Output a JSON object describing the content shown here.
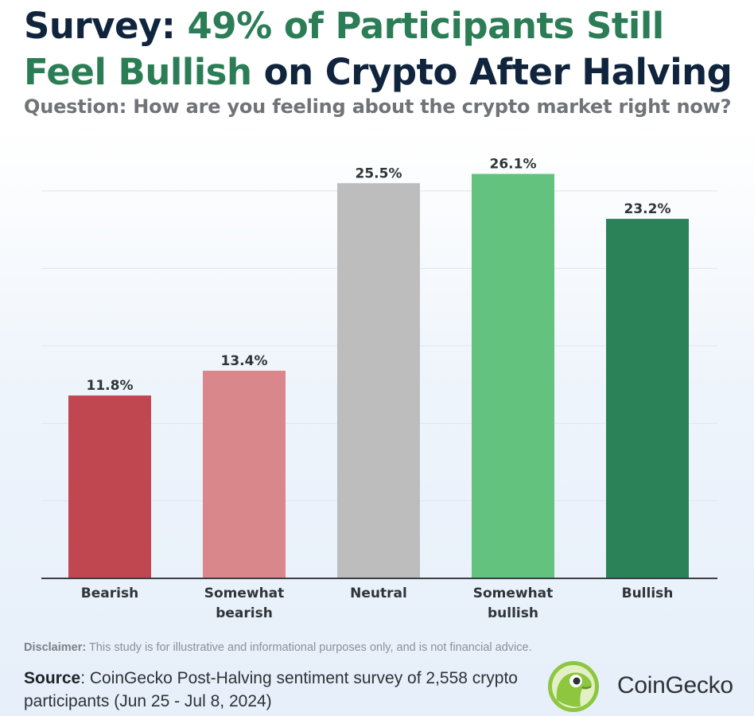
{
  "title": {
    "part1": "Survey: ",
    "part2": "49% of Participants Still Feel Bullish",
    "part3": " on Crypto After Halving"
  },
  "subtitle": "Question: How are you feeling about the crypto market right now?",
  "colors": {
    "title_dark": "#10253d",
    "title_green": "#2b7d56",
    "bearish": "#c0474f",
    "somewhat_bearish": "#d9878b",
    "neutral": "#bdbdbd",
    "somewhat_bullish": "#62c27e",
    "bullish": "#2b8259"
  },
  "chart_data": {
    "type": "bar",
    "categories": [
      "Bearish",
      "Somewhat bearish",
      "Neutral",
      "Somewhat bullish",
      "Bullish"
    ],
    "category_lines": [
      [
        "Bearish"
      ],
      [
        "Somewhat",
        "bearish"
      ],
      [
        "Neutral"
      ],
      [
        "Somewhat",
        "bullish"
      ],
      [
        "Bullish"
      ]
    ],
    "values": [
      11.8,
      13.4,
      25.5,
      26.1,
      23.2
    ],
    "data_labels": [
      "11.8%",
      "13.4%",
      "25.5%",
      "26.1%",
      "23.2%"
    ],
    "bar_colors": [
      "#c0474f",
      "#d9878b",
      "#bdbdbd",
      "#62c27e",
      "#2b8259"
    ],
    "ylim": [
      0,
      25
    ],
    "grid": true,
    "xlabel": "",
    "ylabel": ""
  },
  "disclaimer": {
    "label": "Disclaimer:",
    "text": " This study is for illustrative and informational purposes only, and is not financial advice."
  },
  "source": {
    "label": "Source",
    "text": ": CoinGecko Post-Halving sentiment survey of 2,558 crypto participants (Jun 25 - Jul 8, 2024)"
  },
  "logo": {
    "icon": "gecko-logo-icon",
    "text": "CoinGecko"
  }
}
